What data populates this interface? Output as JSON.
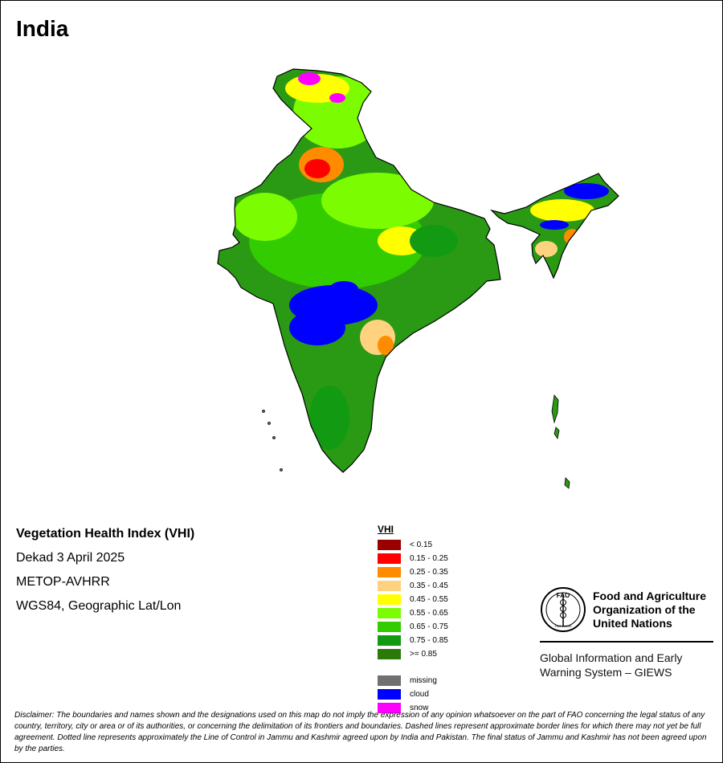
{
  "page": {
    "title": "India"
  },
  "info": {
    "product": "Vegetation Health Index (VHI)",
    "period": "Dekad 3 April 2025",
    "sensor": "METOP-AVHRR",
    "projection": "WGS84, Geographic Lat/Lon"
  },
  "legend": {
    "title": "VHI",
    "classes": [
      {
        "label": "< 0.15",
        "color": "#9b0000"
      },
      {
        "label": "0.15 - 0.25",
        "color": "#ff0000"
      },
      {
        "label": "0.25 - 0.35",
        "color": "#ff8c00"
      },
      {
        "label": "0.35 - 0.45",
        "color": "#ffd27f"
      },
      {
        "label": "0.45 - 0.55",
        "color": "#ffff00"
      },
      {
        "label": "0.55 - 0.65",
        "color": "#7cfc00"
      },
      {
        "label": "0.65 - 0.75",
        "color": "#33cc00"
      },
      {
        "label": "0.75 - 0.85",
        "color": "#139a13"
      },
      {
        "label": ">= 0.85",
        "color": "#2a7a0a"
      }
    ],
    "special": [
      {
        "label": "missing",
        "color": "#707070"
      },
      {
        "label": "cloud",
        "color": "#0000ff"
      },
      {
        "label": "snow",
        "color": "#ff00ff"
      }
    ]
  },
  "fao": {
    "emblem_letters": "FAO",
    "emblem_motto": "FIAT PANIS",
    "org_line1": "Food and Agriculture",
    "org_line2": "Organization of the",
    "org_line3": "United Nations",
    "system_line1": "Global Information and Early",
    "system_line2": "Warning System – GIEWS"
  },
  "disclaimer": "Disclaimer: The boundaries and names shown and the designations used on this map do not imply the expression of any opinion whatsoever on the part of FAO concerning the legal status of any country, territory, city or area or of its authorities, or concerning the delimitation of its frontiers and boundaries. Dashed lines represent approximate border lines for which there may not yet be full agreement. Dotted line represents approximately the Line of Control in Jammu and Kashmir agreed upon by India and Pakistan. The final status of Jammu and Kashmir has not been agreed upon by the parties."
}
